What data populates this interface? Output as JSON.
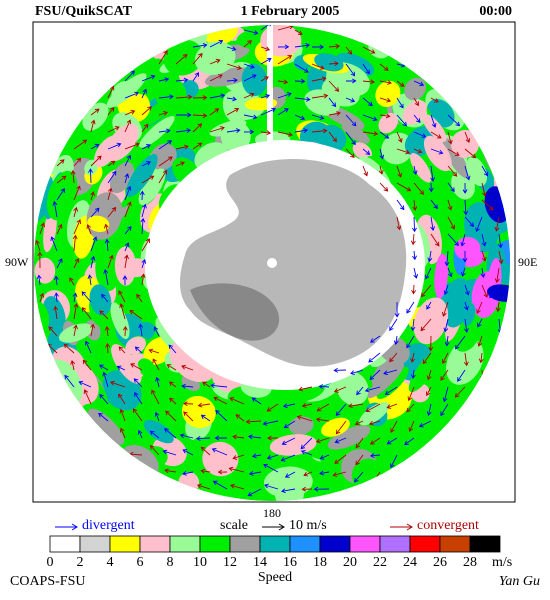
{
  "header": {
    "left": "FSU/QuikSCAT",
    "date": "1 February 2005",
    "time": "00:00"
  },
  "map": {
    "west_label": "90W",
    "east_label": "90E",
    "bottom_label": "180"
  },
  "legend": {
    "divergent": "divergent",
    "scale": "scale",
    "scale_value": "10 m/s",
    "convergent": "convergent",
    "divergent_color": "#0000ff",
    "convergent_color": "#b00000"
  },
  "colorbar": {
    "labels": [
      0,
      2,
      4,
      6,
      8,
      10,
      12,
      14,
      16,
      18,
      20,
      22,
      24,
      26,
      28
    ],
    "unit": "m/s",
    "title": "Speed",
    "colors": [
      "#ffffff",
      "#d3d3d3",
      "#ffff00",
      "#ffc0cb",
      "#98fb98",
      "#00ee00",
      "#a0a0a0",
      "#00b2b2",
      "#1e90ff",
      "#0000cd",
      "#ff55ff",
      "#b070ff",
      "#ff0000",
      "#c84000",
      "#000000"
    ]
  },
  "footer": {
    "left": "COAPS-FSU",
    "right": "Yan Gu"
  }
}
